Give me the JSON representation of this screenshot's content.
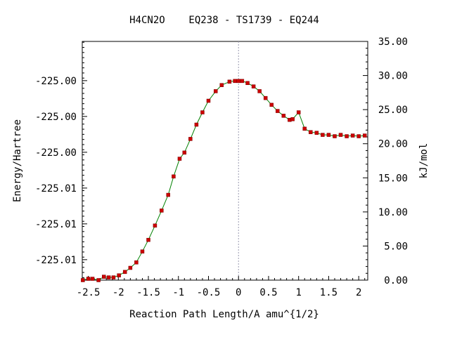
{
  "chart_data": {
    "type": "line",
    "title": "H4CN2O    EQ238 - TS1739 - EQ244",
    "xlabel": "Reaction Path Length/A amu^{1/2}",
    "ylabel_left": "Energy/Hartree",
    "ylabel_right": "kJ/mol",
    "xlim": [
      -2.6,
      2.15
    ],
    "ylim_right": [
      0,
      35
    ],
    "x_ticks": [
      -2.5,
      -2,
      -1.5,
      -1,
      -0.5,
      0,
      0.5,
      1,
      1.5,
      2
    ],
    "x_tick_labels": [
      "-2.5",
      "-2",
      "-1.5",
      "-1",
      "-0.5",
      "0",
      "0.5",
      "1",
      "1.5",
      "2"
    ],
    "left_ticks_kjmol": [
      3,
      8.25,
      13.5,
      18.75,
      24,
      29.25
    ],
    "left_tick_labels": [
      "-225.01",
      "-225.01",
      "-225.01",
      "-225.00",
      "-225.00",
      "-225.00"
    ],
    "right_ticks": [
      0,
      5,
      10,
      15,
      20,
      25,
      30,
      35
    ],
    "right_tick_labels": [
      "0.00",
      "5.00",
      "10.00",
      "15.00",
      "20.00",
      "25.00",
      "30.00",
      "35.00"
    ],
    "ts_x": 0,
    "line_color": "#008000",
    "marker_color": "#cc0000",
    "series": [
      {
        "x": [
          -2.59,
          -2.5,
          -2.43,
          -2.33,
          -2.24,
          -2.16,
          -2.08,
          -1.99,
          -1.89,
          -1.8,
          -1.7,
          -1.6,
          -1.5,
          -1.39,
          -1.28,
          -1.17,
          -1.08,
          -0.98,
          -0.9,
          -0.8,
          -0.7,
          -0.6,
          -0.5,
          -0.38,
          -0.28,
          -0.15,
          -0.06,
          0.0,
          0.06,
          0.15,
          0.25,
          0.35,
          0.45,
          0.55,
          0.65,
          0.75,
          0.85,
          0.9,
          1.0,
          1.1,
          1.2,
          1.3,
          1.4,
          1.5,
          1.6,
          1.7,
          1.8,
          1.9,
          2.0,
          2.1
        ],
        "y": [
          0.0,
          0.2,
          0.2,
          0.0,
          0.5,
          0.4,
          0.4,
          0.7,
          1.2,
          1.8,
          2.6,
          4.2,
          5.9,
          8.0,
          10.2,
          12.5,
          15.2,
          17.8,
          18.7,
          20.7,
          22.8,
          24.6,
          26.3,
          27.7,
          28.6,
          29.1,
          29.2,
          29.2,
          29.2,
          28.9,
          28.4,
          27.7,
          26.7,
          25.7,
          24.8,
          24.1,
          23.5,
          23.6,
          24.6,
          22.2,
          21.7,
          21.6,
          21.3,
          21.3,
          21.1,
          21.3,
          21.1,
          21.2,
          21.1,
          21.2
        ]
      }
    ]
  }
}
